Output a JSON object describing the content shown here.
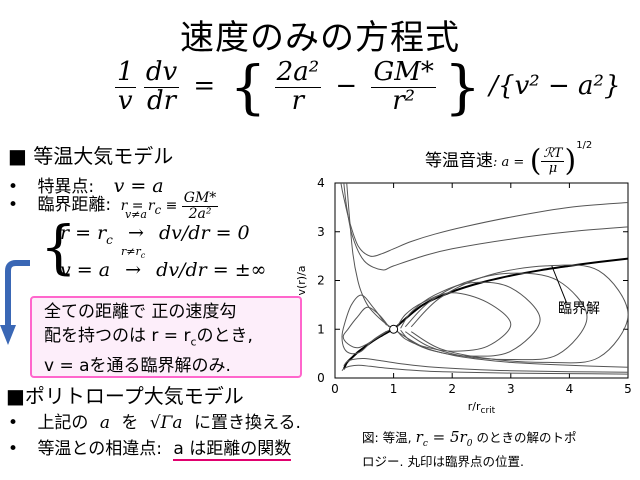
{
  "title": "速度のみの方程式",
  "eq_main": {
    "lhs_num_1": "1",
    "lhs_den_1": "v",
    "lhs_num_2": "dv",
    "lhs_den_2": "dr",
    "eq": "=",
    "t1_num": "2a²",
    "t1_den": "r",
    "minus": "−",
    "t2_num": "GM*",
    "t2_den": "r²",
    "tail": "/{v² − a²}"
  },
  "isothermal": {
    "heading": "■ 等温大気モデル",
    "sound_label": "等温音速",
    "sound_a": ": a =",
    "sound_num": "ℛT",
    "sound_den": "μ",
    "sound_exp": "1/2",
    "bullet": "•",
    "singular_label": "特異点:",
    "singular_eq": "v = a",
    "critical_label": "臨界距離:",
    "critical_lhs": "r = r",
    "critical_sub": "c",
    "critical_equiv": "≡",
    "critical_num": "GM*",
    "critical_den": "2a²",
    "case1_left": "r = r",
    "case1_sub": "c",
    "case1_cond": "v≠a",
    "case1_right": "dv/dr = 0",
    "case2_left": "v = a",
    "case2_cond": "r≠r",
    "case2_cond_sub": "c",
    "case2_right": "dv/dr = ±∞",
    "note_1": "全ての距離で 正の速度勾",
    "note_2": "配を持つのは r = r",
    "note_2_sub": "c",
    "note_2_end": "のとき,",
    "note_3": "v = aを通る臨界解のみ."
  },
  "polytrope": {
    "heading": "■ポリトロープ大気モデル",
    "b1_pre": "上記の",
    "b1_a": "a",
    "b1_mid": "を",
    "b1_sqrt": "√Γa",
    "b1_post": "に置き換える.",
    "b2_pre": "等温との相違点:",
    "b2_under": "a は距離の関数"
  },
  "figure": {
    "annotation": "臨界解",
    "caption_1_pre": "図:  等温,",
    "caption_1_eq": "r",
    "caption_1_sub": "c",
    "caption_1_eq2": "= 5r",
    "caption_1_sub2": "0",
    "caption_1_post": "のときの解のトポ",
    "caption_2": "ロジー.  丸印は臨界点の位置."
  },
  "chart_data": {
    "type": "line",
    "xlabel": "r/r",
    "xlabel_sub": "crit",
    "ylabel": "v(r)/a",
    "xlim": [
      0,
      5
    ],
    "ylim": [
      0,
      4
    ],
    "xticks": [
      0,
      1,
      2,
      3,
      4,
      5
    ],
    "yticks": [
      0,
      1,
      2,
      3,
      4
    ],
    "critical_point": [
      1,
      1
    ],
    "series": [
      {
        "x": [
          1,
          1.5,
          2,
          2.5,
          3,
          3.5,
          4,
          4.5,
          5
        ],
        "y": [
          1,
          1.5,
          1.77,
          1.96,
          2.1,
          2.21,
          2.3,
          2.38,
          2.45
        ]
      },
      {
        "x": [
          0.15,
          0.2,
          0.3,
          0.4,
          0.5,
          0.6,
          0.7,
          0.8,
          0.9,
          1
        ],
        "y": [
          0.18,
          0.31,
          0.43,
          0.54,
          0.63,
          0.72,
          0.8,
          0.87,
          0.94,
          1
        ]
      },
      {
        "x": [
          0.2,
          0.3,
          0.4,
          0.5,
          0.6,
          0.8,
          1
        ],
        "y": [
          4.0,
          2.6,
          1.95,
          1.62,
          1.42,
          1.18,
          1
        ]
      },
      {
        "x": [
          1,
          1.5,
          2,
          2.5,
          3,
          4,
          5
        ],
        "y": [
          1,
          0.64,
          0.47,
          0.38,
          0.32,
          0.26,
          0.22
        ]
      },
      {
        "x": [
          0.15,
          0.2,
          0.3,
          0.5,
          0.8,
          1,
          1.5,
          2,
          3,
          4,
          5
        ],
        "y": [
          4.0,
          3.5,
          2.9,
          2.4,
          2.22,
          2.3,
          2.5,
          2.65,
          2.85,
          3.0,
          3.1
        ]
      },
      {
        "x": [
          0.1,
          0.15,
          0.25,
          0.4,
          0.6,
          0.8,
          1,
          1.3,
          1.7,
          2.2,
          3,
          4,
          5
        ],
        "y": [
          4.0,
          3.7,
          3.2,
          2.7,
          2.5,
          2.55,
          2.65,
          2.8,
          2.95,
          3.1,
          3.3,
          3.5,
          3.6
        ]
      },
      {
        "x": [
          0.15,
          0.2,
          0.3,
          0.5,
          0.8,
          1.2,
          1.7,
          2.3,
          3,
          4,
          5
        ],
        "y": [
          0.25,
          0.33,
          0.38,
          0.4,
          0.35,
          0.28,
          0.22,
          0.18,
          0.15,
          0.13,
          0.12
        ]
      },
      {
        "x": [
          0.12,
          0.16,
          0.25,
          0.4,
          0.6,
          0.9,
          1.2,
          1.6,
          2.2,
          3,
          4,
          5
        ],
        "y": [
          0.15,
          0.2,
          0.24,
          0.26,
          0.24,
          0.2,
          0.17,
          0.14,
          0.12,
          0.1,
          0.09,
          0.08
        ]
      },
      {
        "x": [
          1.05,
          1.2,
          1.5,
          2,
          2.6,
          3,
          2.6,
          2,
          1.5,
          1.2,
          1.05
        ],
        "y": [
          1.02,
          1.3,
          1.55,
          1.75,
          1.55,
          1.1,
          0.65,
          0.55,
          0.65,
          0.8,
          0.98
        ]
      },
      {
        "x": [
          1.12,
          1.3,
          1.7,
          2.3,
          3,
          3.5,
          3,
          2.3,
          1.7,
          1.3,
          1.12
        ],
        "y": [
          1.02,
          1.35,
          1.7,
          1.95,
          1.85,
          1.2,
          0.55,
          0.45,
          0.55,
          0.75,
          0.98
        ]
      },
      {
        "x": [
          1.2,
          1.6,
          2.2,
          3,
          3.8,
          4.3,
          3.8,
          3,
          2.2,
          1.6,
          1.2
        ],
        "y": [
          1.05,
          1.55,
          1.95,
          2.15,
          2.0,
          1.25,
          0.48,
          0.38,
          0.45,
          0.65,
          0.95
        ]
      },
      {
        "x": [
          1.3,
          1.8,
          2.6,
          3.6,
          4.5,
          5,
          4.5,
          3.6,
          2.6,
          1.8,
          1.3
        ],
        "y": [
          1.05,
          1.65,
          2.1,
          2.3,
          2.2,
          1.3,
          0.42,
          0.32,
          0.4,
          0.6,
          0.95
        ]
      },
      {
        "x": [
          0.92,
          0.75,
          0.55,
          0.38,
          0.22,
          0.14,
          0.22,
          0.38,
          0.55,
          0.75,
          0.92
        ],
        "y": [
          1.05,
          1.3,
          1.45,
          1.25,
          1.0,
          0.85,
          0.7,
          0.62,
          0.7,
          0.85,
          0.98
        ]
      },
      {
        "x": [
          0.88,
          0.65,
          0.45,
          0.28,
          0.16,
          0.12,
          0.16,
          0.28,
          0.45,
          0.65,
          0.88
        ],
        "y": [
          1.08,
          1.45,
          1.7,
          1.5,
          1.1,
          0.85,
          0.6,
          0.5,
          0.55,
          0.78,
          0.96
        ]
      }
    ]
  }
}
